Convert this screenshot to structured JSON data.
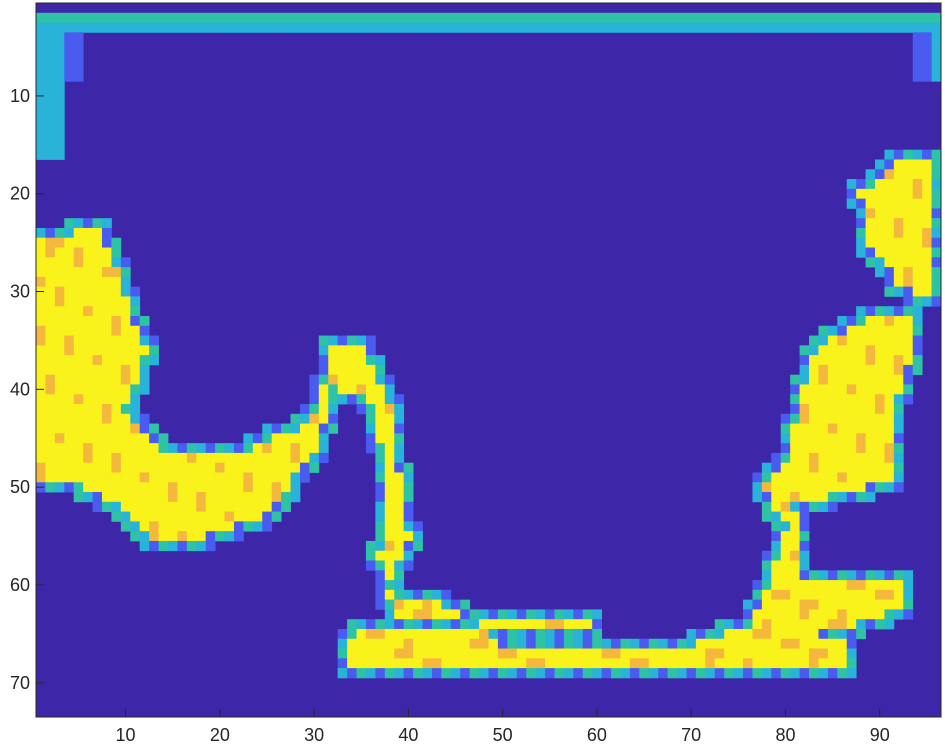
{
  "chart_data": {
    "type": "heatmap",
    "title": "",
    "xlabel": "",
    "ylabel": "",
    "xlim": [
      0.5,
      96.5
    ],
    "ylim": [
      0.5,
      73.5
    ],
    "y_direction": "reversed",
    "grid": false,
    "colormap": "parula",
    "x_ticks": [
      10,
      20,
      30,
      40,
      50,
      60,
      70,
      80,
      90
    ],
    "y_ticks": [
      10,
      20,
      30,
      40,
      50,
      60,
      70
    ],
    "x_tick_labels": [
      "10",
      "20",
      "30",
      "40",
      "50",
      "60",
      "70",
      "80",
      "90"
    ],
    "y_tick_labels": [
      "10",
      "20",
      "30",
      "40",
      "50",
      "60",
      "70"
    ],
    "value_levels": {
      "background": 0,
      "boundary": 0.6,
      "land_high": 1.0
    },
    "colors": {
      "background": "#3e26a8",
      "level_0_25": "#4a5cf0",
      "level_0_45": "#2ab3d9",
      "level_0_6": "#2dc3a4",
      "level_0_7": "#9fbf3a",
      "level_0_85": "#f4b83d",
      "level_1_0": "#f9f21b",
      "axis": "#262626"
    },
    "regions": {
      "top_band": {
        "rows": [
          2,
          2
        ],
        "cols": [
          1,
          96
        ],
        "value": 0.6
      },
      "left_cyan_band": {
        "rows": [
          3,
          16
        ],
        "cols": [
          1,
          3
        ],
        "value": 0.45
      },
      "left_landmass": {
        "polygon": [
          [
            1,
            25
          ],
          [
            5,
            24
          ],
          [
            7,
            23
          ],
          [
            9,
            27
          ],
          [
            12,
            36
          ],
          [
            10,
            42
          ],
          [
            14,
            47
          ],
          [
            20,
            47
          ],
          [
            26,
            45
          ],
          [
            30,
            43
          ],
          [
            32,
            36
          ],
          [
            35,
            35
          ],
          [
            38,
            41
          ],
          [
            39,
            48
          ],
          [
            40,
            55
          ],
          [
            38,
            59
          ],
          [
            37,
            62
          ],
          [
            44,
            62
          ],
          [
            48,
            64
          ],
          [
            55,
            64
          ],
          [
            58,
            63
          ],
          [
            59,
            64
          ],
          [
            34,
            65
          ],
          [
            33,
            69
          ],
          [
            86,
            69
          ],
          [
            87,
            66
          ],
          [
            84,
            65
          ],
          [
            93,
            62
          ],
          [
            93,
            60
          ],
          [
            82,
            59
          ],
          [
            81,
            52
          ],
          [
            85,
            51
          ],
          [
            92,
            49
          ],
          [
            92,
            41
          ],
          [
            94,
            33
          ],
          [
            88,
            33
          ],
          [
            83,
            36
          ],
          [
            80,
            47
          ],
          [
            78,
            50
          ],
          [
            80,
            54
          ],
          [
            78,
            60
          ],
          [
            77,
            62
          ],
          [
            76,
            64
          ],
          [
            70,
            66
          ],
          [
            56,
            67
          ],
          [
            50,
            66
          ],
          [
            48,
            64
          ],
          [
            39,
            64
          ],
          [
            37,
            57
          ],
          [
            38,
            51
          ],
          [
            37,
            45
          ],
          [
            36,
            41
          ],
          [
            32,
            40
          ],
          [
            30,
            46
          ],
          [
            27,
            50
          ],
          [
            24,
            53
          ],
          [
            18,
            55
          ],
          [
            13,
            56
          ],
          [
            10,
            52
          ],
          [
            6,
            50
          ],
          [
            1,
            50
          ]
        ],
        "value": 1.0
      },
      "right_landmass_upper": {
        "polygon": [
          [
            88,
            20
          ],
          [
            92,
            17
          ],
          [
            96,
            17
          ],
          [
            96,
            31
          ],
          [
            92,
            29
          ],
          [
            89,
            25
          ]
        ],
        "value": 1.0
      },
      "boundary_ring_value": 0.6,
      "peninsula_boundary_value": 0.25
    }
  }
}
